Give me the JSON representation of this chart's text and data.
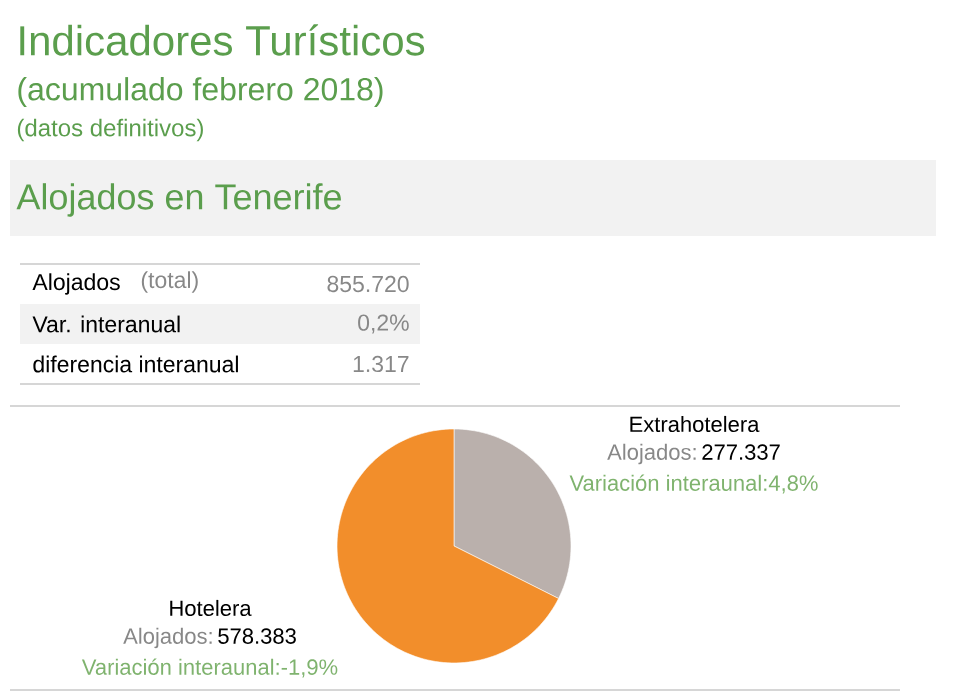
{
  "chart_data": {
    "type": "pie",
    "title": "Indicadores Turísticos",
    "subtitle": "(acumulado febrero 2018)",
    "categories": [
      "Extrahotelera",
      "Hotelera"
    ],
    "values": [
      277337,
      578383
    ],
    "value_labels": [
      "277.337",
      "578.383"
    ],
    "colors": [
      "#bab0ac",
      "#f28e2b"
    ],
    "annotations": [
      "(datos definitivos)",
      "Alojados en Tenerife",
      "Alojados",
      "(total)",
      "855.720",
      "Var. interanual",
      "0,2%",
      "diferencia interanual",
      "1.317",
      "Alojados:",
      "Variación interaunal:4,8%",
      "Alojados:",
      "Variación interaunal:-1,9%"
    ]
  }
}
